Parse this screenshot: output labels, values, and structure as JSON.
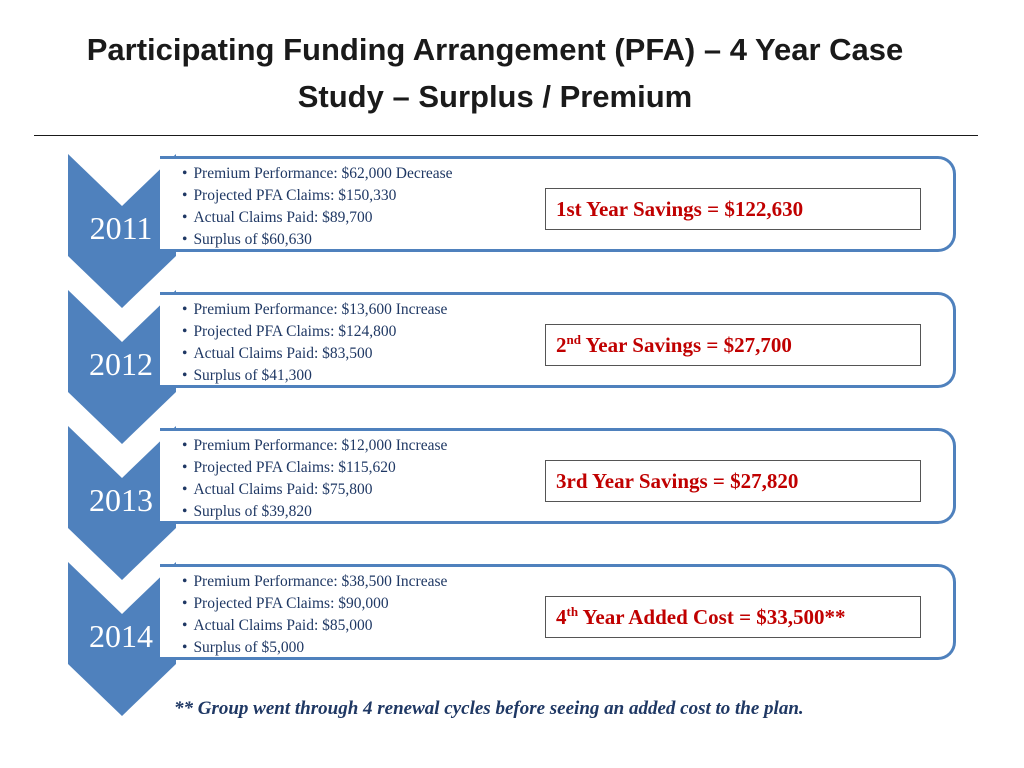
{
  "title": "Participating Funding Arrangement (PFA) – 4 Year Case Study – Surplus / Premium",
  "colors": {
    "chevron": "#4f81bd",
    "savings_text": "#c00000",
    "bullet_text": "#1f3864"
  },
  "years": [
    {
      "year": "2011",
      "bullets": [
        "Premium Performance: $62,000 Decrease",
        "Projected PFA Claims: $150,330",
        "Actual Claims Paid: $89,700",
        "Surplus of $60,630"
      ],
      "savings_prefix": "1st",
      "savings_sup": "",
      "savings_text": " Year Savings = $122,630"
    },
    {
      "year": "2012",
      "bullets": [
        "Premium Performance: $13,600 Increase",
        "Projected PFA Claims: $124,800",
        "Actual Claims Paid: $83,500",
        "Surplus of $41,300"
      ],
      "savings_prefix": "2",
      "savings_sup": "nd",
      "savings_text": " Year Savings = $27,700"
    },
    {
      "year": "2013",
      "bullets": [
        "Premium Performance: $12,000 Increase",
        "Projected PFA Claims: $115,620",
        "Actual Claims Paid: $75,800",
        "Surplus of $39,820"
      ],
      "savings_prefix": "3rd",
      "savings_sup": "",
      "savings_text": " Year Savings = $27,820"
    },
    {
      "year": "2014",
      "bullets": [
        "Premium Performance: $38,500 Increase",
        "Projected PFA Claims: $90,000",
        "Actual Claims Paid: $85,000",
        "Surplus of $5,000"
      ],
      "savings_prefix": "4",
      "savings_sup": "th",
      "savings_text": " Year Added Cost = $33,500**"
    }
  ],
  "footnote": "** Group went through 4 renewal cycles before seeing an added cost to the plan."
}
